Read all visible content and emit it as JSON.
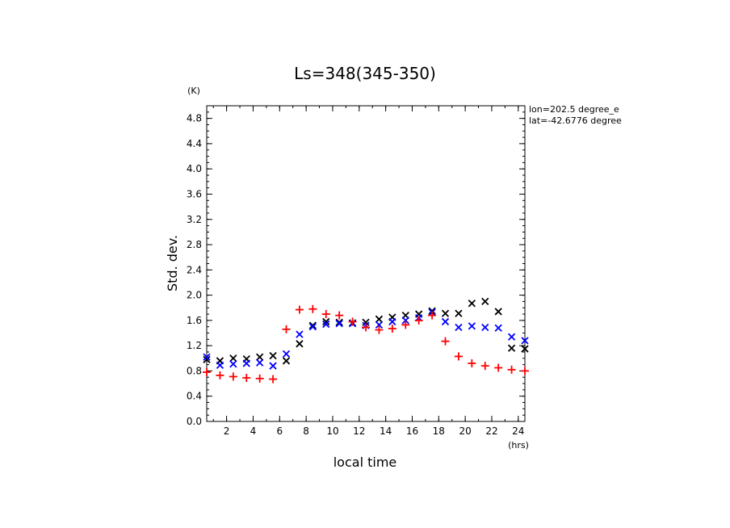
{
  "chart_data": {
    "type": "scatter",
    "title": "Ls=348(345-350)",
    "xlabel": "local time",
    "ylabel": "Std. dev.",
    "x_unit": "(hrs)",
    "y_unit": "(K)",
    "annotations": [
      "lon=202.5 degree_e",
      "lat=-42.6776 degree"
    ],
    "xlim": [
      0.5,
      24.5
    ],
    "ylim": [
      0.0,
      5.0
    ],
    "x_ticks": [
      2,
      4,
      6,
      8,
      10,
      12,
      14,
      16,
      18,
      20,
      22,
      24
    ],
    "y_ticks": [
      0.0,
      0.4,
      0.8,
      1.2,
      1.6,
      2.0,
      2.4,
      2.8,
      3.2,
      3.6,
      4.0,
      4.4,
      4.8
    ],
    "grid": false,
    "series": [
      {
        "marker": "x",
        "color": "#000000",
        "x": [
          0.5,
          1.5,
          2.5,
          3.5,
          4.5,
          5.5,
          6.5,
          7.5,
          8.5,
          9.5,
          10.5,
          11.5,
          12.5,
          13.5,
          14.5,
          15.5,
          16.5,
          17.5,
          18.5,
          19.5,
          20.5,
          21.5,
          22.5,
          23.5,
          24.5
        ],
        "y": [
          0.98,
          0.96,
          1.0,
          0.99,
          1.02,
          1.04,
          0.96,
          1.23,
          1.52,
          1.58,
          1.57,
          1.56,
          1.57,
          1.62,
          1.65,
          1.68,
          1.7,
          1.75,
          1.71,
          1.71,
          1.87,
          1.9,
          1.74,
          1.16,
          1.15
        ]
      },
      {
        "marker": "x",
        "color": "#0000ff",
        "x": [
          0.5,
          1.5,
          2.5,
          3.5,
          4.5,
          5.5,
          6.5,
          7.5,
          8.5,
          9.5,
          10.5,
          11.5,
          12.5,
          13.5,
          14.5,
          15.5,
          16.5,
          17.5,
          18.5,
          19.5,
          20.5,
          21.5,
          22.5,
          23.5,
          24.5
        ],
        "y": [
          1.02,
          0.89,
          0.91,
          0.92,
          0.93,
          0.88,
          1.07,
          1.38,
          1.5,
          1.54,
          1.55,
          1.55,
          1.52,
          1.53,
          1.58,
          1.6,
          1.64,
          1.73,
          1.58,
          1.49,
          1.51,
          1.49,
          1.48,
          1.34,
          1.28
        ]
      },
      {
        "marker": "+",
        "color": "#ff0000",
        "x": [
          0.5,
          1.5,
          2.5,
          3.5,
          4.5,
          5.5,
          6.5,
          7.5,
          8.5,
          9.5,
          10.5,
          11.5,
          12.5,
          13.5,
          14.5,
          15.5,
          16.5,
          17.5,
          18.5,
          19.5,
          20.5,
          21.5,
          22.5,
          23.5,
          24.5
        ],
        "y": [
          0.78,
          0.73,
          0.71,
          0.69,
          0.68,
          0.67,
          1.46,
          1.77,
          1.78,
          1.7,
          1.68,
          1.58,
          1.49,
          1.45,
          1.47,
          1.53,
          1.6,
          1.68,
          1.27,
          1.03,
          0.92,
          0.88,
          0.85,
          0.82,
          0.8
        ]
      }
    ]
  }
}
